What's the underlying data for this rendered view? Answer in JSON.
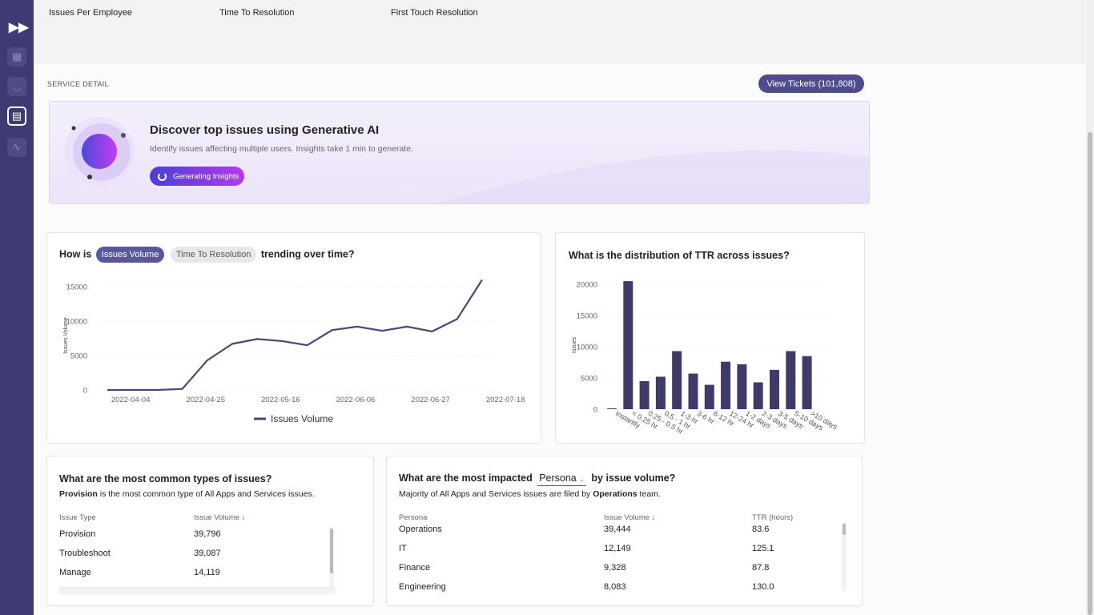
{
  "top_kpis": [
    "Issues Per Employee",
    "Time To Resolution",
    "First Touch Resolution"
  ],
  "section_title": "SERVICE DETAIL",
  "view_tickets_label": "View Tickets (101,808)",
  "ai_banner": {
    "title": "Discover top issues using Generative AI",
    "subtitle": "Identify issues affecting multiple users. Insights take 1 min to generate.",
    "button": "Generating Insights"
  },
  "trend_card": {
    "prefix": "How is",
    "toggle_active": "Issues Volume",
    "toggle_inactive": "Time To Resolution",
    "suffix": "trending over time?"
  },
  "ttr_card": {
    "title": "What is the distribution of TTR across issues?"
  },
  "chart_data": [
    {
      "type": "line",
      "title": "",
      "xlabel": "",
      "ylabel": "Issues Volume",
      "ylim": [
        0,
        15000
      ],
      "yticks": [
        0,
        5000,
        10000,
        15000
      ],
      "x": [
        "2022-03-28",
        "2022-04-04",
        "2022-04-11",
        "2022-04-18",
        "2022-04-25",
        "2022-05-02",
        "2022-05-09",
        "2022-05-16",
        "2022-05-23",
        "2022-05-30",
        "2022-06-06",
        "2022-06-13",
        "2022-06-20",
        "2022-06-27",
        "2022-07-04",
        "2022-07-11"
      ],
      "xticks": [
        "2022-04-04",
        "2022-04-25",
        "2022-05-16",
        "2022-06-06",
        "2022-06-27",
        "2022-07-18"
      ],
      "series": [
        {
          "name": "Issues Volume",
          "values": [
            0,
            0,
            0,
            150,
            4300,
            6700,
            7400,
            7100,
            6500,
            8700,
            9200,
            8600,
            9200,
            8500,
            10300,
            16000
          ]
        }
      ],
      "legend": "bottom",
      "color": "#4a4778"
    },
    {
      "type": "bar",
      "title": "What is the distribution of TTR across issues?",
      "xlabel": "",
      "ylabel": "Issues",
      "ylim": [
        0,
        20000
      ],
      "yticks": [
        0,
        5000,
        10000,
        15000,
        20000
      ],
      "categories": [
        "Instantly",
        "< 0.25 hr",
        "0.25 - 0.5 hr",
        "0.5 - 1 hr",
        "1-3 hr",
        "3-6 hr",
        "6-12 hr",
        "12-24 hr",
        "1-2 days",
        "2-3 days",
        "3-5 days",
        "5-10 days",
        ">10 days"
      ],
      "values": [
        100,
        20500,
        4500,
        5200,
        9300,
        5700,
        3900,
        7600,
        7200,
        4300,
        6300,
        9300,
        8500
      ],
      "color": "#3e3b6b"
    }
  ],
  "types_card": {
    "title": "What are the most common types of issues?",
    "summary_bold": "Provision",
    "summary_rest": " is the most common type of All Apps and Services issues.",
    "columns": [
      "Issue Type",
      "Issue Volume ↓"
    ],
    "rows": [
      [
        "Provision",
        "39,796"
      ],
      [
        "Troubleshoot",
        "39,087"
      ],
      [
        "Manage",
        "14,119"
      ]
    ]
  },
  "persona_card": {
    "prefix": "What are the most impacted",
    "dropdown": "Persona",
    "suffix": "by issue volume?",
    "summary_pre": "Majority of All Apps and Services issues are filed by ",
    "summary_bold": "Operations",
    "summary_post": " team.",
    "columns": [
      "Persona",
      "Issue Volume ↓",
      "TTR (hours)"
    ],
    "rows": [
      [
        "Operations",
        "39,444",
        "83.6"
      ],
      [
        "IT",
        "12,149",
        "125.1"
      ],
      [
        "Finance",
        "9,328",
        "87.8"
      ],
      [
        "Engineering",
        "8,083",
        "130.0"
      ]
    ]
  }
}
